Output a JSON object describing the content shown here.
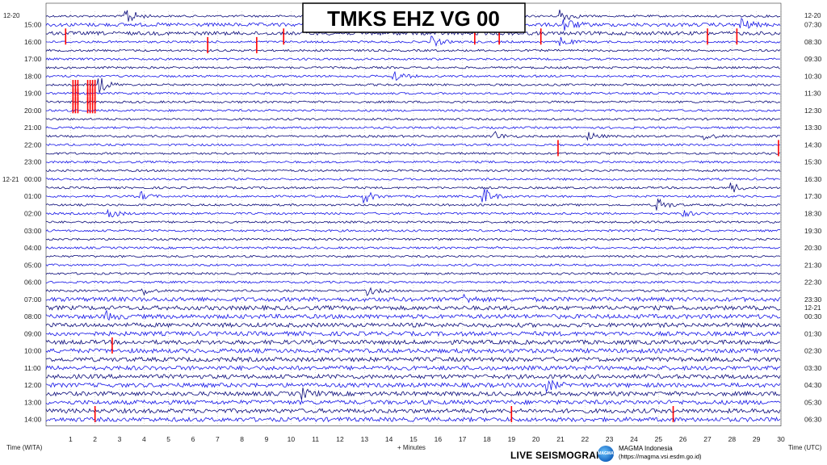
{
  "title": "TMKS EHZ VG 00",
  "left_labels": [
    "15:00",
    "16:00",
    "17:00",
    "18:00",
    "19:00",
    "20:00",
    "21:00",
    "22:00",
    "23:00",
    "00:00",
    "01:00",
    "02:00",
    "03:00",
    "04:00",
    "05:00",
    "06:00",
    "07:00",
    "08:00",
    "09:00",
    "10:00",
    "11:00",
    "12:00",
    "13:00",
    "14:00"
  ],
  "right_labels": [
    "07:30",
    "08:30",
    "09:30",
    "10:30",
    "11:30",
    "12:30",
    "13:30",
    "14:30",
    "15:30",
    "16:30",
    "17:30",
    "18:30",
    "19:30",
    "20:30",
    "21:30",
    "22:30",
    "23:30",
    "00:30",
    "01:30",
    "02:30",
    "03:30",
    "04:30",
    "05:30",
    "06:30"
  ],
  "date_labels": {
    "left_top": "12-20",
    "left_mid": "12-21",
    "right_top": "12-20",
    "right_mid": "12-21"
  },
  "footer": {
    "left_axis": "Time (WITA)",
    "mid_axis": "+ Minutes",
    "right_axis": "Time (UTC)",
    "live": "LIVE SEISMOGRAM",
    "org_name": "MAGMA Indonesia",
    "org_url": "(https://magma.vsi.esdm.go.id)",
    "logo_icon": "magma-globe-icon"
  },
  "colors": {
    "trace_dark": "#0a0a7a",
    "trace_blue": "#1515e6",
    "marker_red": "#ff0000",
    "grid": "#b0b0b0"
  },
  "chart_data": {
    "type": "line",
    "subtype": "helicorder",
    "x": {
      "ticks": [
        1,
        2,
        3,
        4,
        5,
        6,
        7,
        8,
        9,
        10,
        11,
        12,
        13,
        14,
        15,
        16,
        17,
        18,
        19,
        20,
        21,
        22,
        23,
        24,
        25,
        26,
        27,
        28,
        29,
        30
      ],
      "range": [
        0,
        30
      ],
      "label": "+ Minutes"
    },
    "rows_per_hour": 2,
    "row_count": 48,
    "row_colors": [
      "dark",
      "blue"
    ],
    "events": [
      {
        "row": 0,
        "minute": 3.3,
        "amp": 3.0
      },
      {
        "row": 0,
        "minute": 21.0,
        "amp": 2.5
      },
      {
        "row": 1,
        "minute": 28.3,
        "amp": 2.5
      },
      {
        "row": 1,
        "minute": 21.2,
        "amp": 2.0
      },
      {
        "row": 3,
        "minute": 15.8,
        "amp": 1.5
      },
      {
        "row": 3,
        "minute": 21.0,
        "amp": 1.5
      },
      {
        "row": 7,
        "minute": 14.2,
        "amp": 2.0
      },
      {
        "row": 8,
        "minute": 2.2,
        "amp": 2.5
      },
      {
        "row": 14,
        "minute": 18.2,
        "amp": 2.0
      },
      {
        "row": 14,
        "minute": 22.2,
        "amp": 1.2
      },
      {
        "row": 14,
        "minute": 26.9,
        "amp": 1.2
      },
      {
        "row": 20,
        "minute": 28.0,
        "amp": 1.5
      },
      {
        "row": 21,
        "minute": 3.9,
        "amp": 1.2
      },
      {
        "row": 21,
        "minute": 13.0,
        "amp": 2.0
      },
      {
        "row": 21,
        "minute": 17.9,
        "amp": 2.5
      },
      {
        "row": 22,
        "minute": 25.0,
        "amp": 2.0
      },
      {
        "row": 23,
        "minute": 2.6,
        "amp": 1.5
      },
      {
        "row": 23,
        "minute": 25.9,
        "amp": 1.5
      },
      {
        "row": 32,
        "minute": 4.0,
        "amp": 1.2
      },
      {
        "row": 32,
        "minute": 13.2,
        "amp": 1.2
      },
      {
        "row": 33,
        "minute": 17.0,
        "amp": 1.5
      },
      {
        "row": 35,
        "minute": 2.5,
        "amp": 1.2
      },
      {
        "row": 43,
        "minute": 20.5,
        "amp": 1.5
      },
      {
        "row": 44,
        "minute": 10.5,
        "amp": 1.5
      }
    ],
    "red_markers": [
      {
        "row": 2,
        "minutes": [
          0.8,
          9.7,
          17.5,
          18.5,
          20.2,
          27.0,
          28.2
        ]
      },
      {
        "row": 3,
        "minutes": [
          6.6,
          8.6
        ]
      },
      {
        "row": 8,
        "minutes": [
          1.1,
          1.2,
          1.3,
          1.7,
          1.8,
          1.9,
          2.0
        ]
      },
      {
        "row": 9,
        "minutes": [
          1.1,
          1.2,
          1.3,
          1.7,
          1.8,
          1.9,
          2.0
        ]
      },
      {
        "row": 10,
        "minutes": [
          1.1,
          1.2,
          1.3,
          1.7,
          1.8,
          1.9,
          2.0
        ]
      },
      {
        "row": 15,
        "minutes": [
          20.9,
          29.9
        ]
      },
      {
        "row": 38,
        "minutes": [
          2.7
        ]
      },
      {
        "row": 46,
        "minutes": [
          2.0,
          19.0,
          25.6
        ]
      }
    ]
  }
}
